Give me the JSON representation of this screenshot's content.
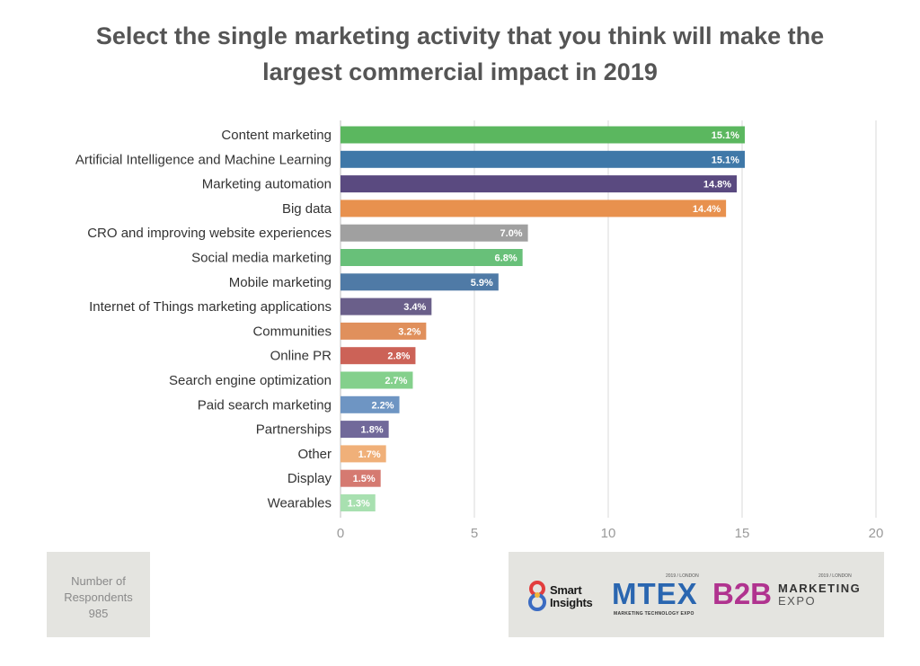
{
  "chart_data": {
    "type": "bar",
    "orientation": "horizontal",
    "title": "Select the single marketing activity that you think will make the largest commercial impact in 2019",
    "title_lines": [
      "Select the single marketing activity that you think will make the",
      "largest commercial impact in 2019"
    ],
    "categories": [
      "Content marketing",
      "Artificial Intelligence and Machine Learning",
      "Marketing automation",
      "Big data",
      "CRO and improving website experiences",
      "Social media marketing",
      "Mobile marketing",
      "Internet of Things marketing applications",
      "Communities",
      "Online PR",
      "Search engine optimization",
      "Paid search marketing",
      "Partnerships",
      "Other",
      "Display",
      "Wearables"
    ],
    "values": [
      15.1,
      15.1,
      14.8,
      14.4,
      7.0,
      6.8,
      5.9,
      3.4,
      3.2,
      2.8,
      2.7,
      2.2,
      1.8,
      1.7,
      1.5,
      1.3
    ],
    "value_labels": [
      "15.1%",
      "15.1%",
      "14.8%",
      "14.4%",
      "7.0%",
      "6.8%",
      "5.9%",
      "3.4%",
      "3.2%",
      "2.8%",
      "2.7%",
      "2.2%",
      "1.8%",
      "1.7%",
      "1.5%",
      "1.3%"
    ],
    "colors": [
      "#5bb75f",
      "#3f78a8",
      "#5a4a80",
      "#e8914e",
      "#a0a0a0",
      "#68c079",
      "#4f7aa6",
      "#6a5f8a",
      "#e0905c",
      "#cc6257",
      "#84d08c",
      "#6e95c3",
      "#71699a",
      "#f0b079",
      "#d57a71",
      "#a8e0b0"
    ],
    "xlim": [
      0,
      20
    ],
    "xticks": [
      "0",
      "5",
      "10",
      "15",
      "20"
    ],
    "xlabel": "",
    "ylabel": "",
    "grid": "vertical"
  },
  "respondents": {
    "lines": [
      "Number of",
      "Respondents",
      "985"
    ]
  },
  "logos": {
    "smart_insights": [
      "Smart",
      "Insights"
    ],
    "mtex": {
      "name": "MTEX",
      "tagline": "MARKETING TECHNOLOGY EXPO",
      "edition": "2019 / LONDON"
    },
    "b2b": {
      "name": "B2B",
      "line1": "MARKETING",
      "line2": "EXPO",
      "edition": "2019 / LONDON"
    }
  },
  "colors": {
    "title": "#555555",
    "panel_bg": "#e4e4e0",
    "grid": "#d8d8d8",
    "tick_text": "#9a9a9a",
    "category_text": "#333333"
  }
}
